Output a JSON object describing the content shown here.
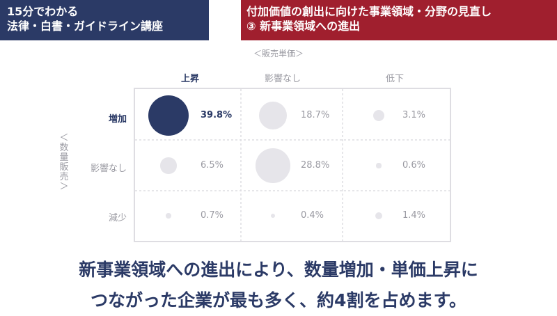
{
  "header": {
    "left_line1": "15分でわかる",
    "left_line2": "法律・白書・ガイドライン講座",
    "right_line1": "付加価値の創出に向けた事業領域・分野の見直し",
    "right_line2": "③ 新事業領域への進出"
  },
  "chart_data": {
    "type": "bubble-matrix",
    "col_axis_label": "＜販売単価＞",
    "row_axis_label": "＜数量販売＞",
    "columns": [
      "上昇",
      "影響なし",
      "低下"
    ],
    "rows": [
      "増加",
      "影響なし",
      "減少"
    ],
    "values": [
      [
        39.8,
        18.7,
        3.1
      ],
      [
        6.5,
        28.8,
        0.6
      ],
      [
        0.7,
        0.4,
        1.4
      ]
    ],
    "labels": [
      [
        "39.8%",
        "18.7%",
        "3.1%"
      ],
      [
        "6.5%",
        "28.8%",
        "0.6%"
      ],
      [
        "0.7%",
        "0.4%",
        "1.4%"
      ]
    ],
    "highlight": [
      0,
      0
    ],
    "colors": {
      "highlight": "#2b3a66",
      "normal": "#e6e5ea",
      "grid": "#dedde2"
    }
  },
  "caption": {
    "line1": "新事業領域への進出により、数量増加・単価上昇に",
    "line2": "つながった企業が最も多く、約4割を占めます。"
  }
}
